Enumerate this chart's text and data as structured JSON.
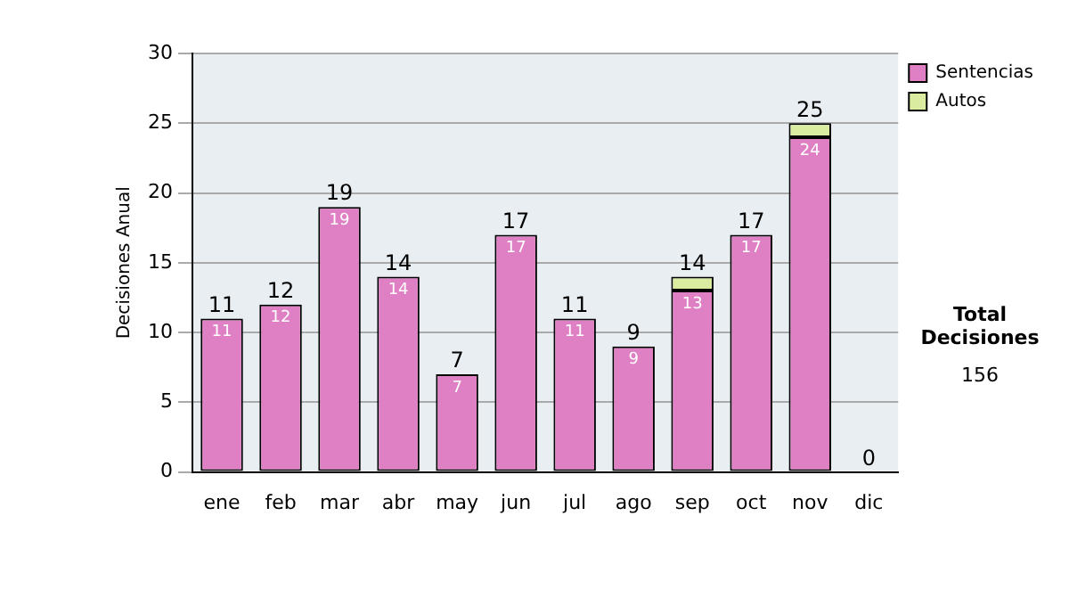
{
  "chart_data": {
    "type": "bar",
    "stacked": true,
    "ylabel": "Decisiones Anual",
    "categories": [
      "ene",
      "feb",
      "mar",
      "abr",
      "may",
      "jun",
      "jul",
      "ago",
      "sep",
      "oct",
      "nov",
      "dic"
    ],
    "series": [
      {
        "name": "Sentencias",
        "color": "#df7fc4",
        "values": [
          11,
          12,
          19,
          14,
          7,
          17,
          11,
          9,
          13,
          17,
          24,
          0
        ],
        "value_labels": [
          "11",
          "12",
          "19",
          "14",
          "7",
          "17",
          "11",
          "9",
          "13",
          "17",
          "24",
          null
        ]
      },
      {
        "name": "Autos",
        "color": "#d9eca0",
        "values": [
          0,
          0,
          0,
          0,
          0,
          0,
          0,
          0,
          1,
          0,
          1,
          0
        ]
      }
    ],
    "totals": [
      "11",
      "12",
      "19",
      "14",
      "7",
      "17",
      "11",
      "9",
      "14",
      "17",
      "25",
      "0"
    ],
    "ylim": [
      0,
      30
    ],
    "yticks": [
      0,
      5,
      10,
      15,
      20,
      25,
      30
    ],
    "grid": "y",
    "legend": "right",
    "annotations": [
      "Total Decisiones",
      "156"
    ]
  }
}
